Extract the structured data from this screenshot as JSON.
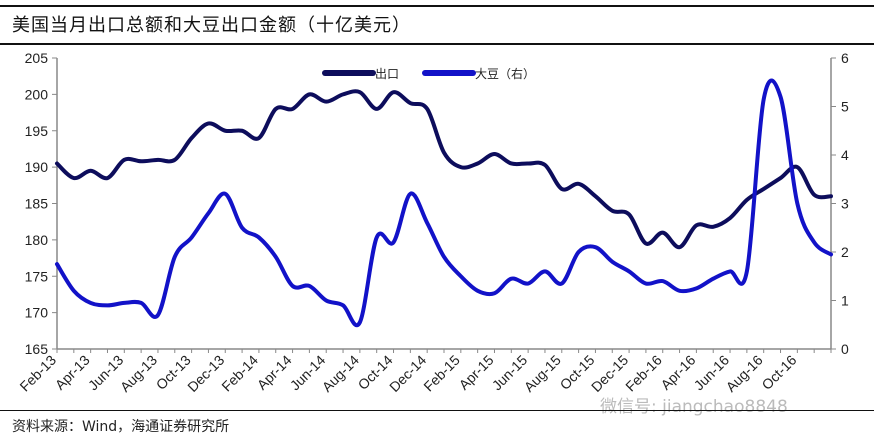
{
  "title": "美国当月出口总额和大豆出口金额（十亿美元）",
  "source": "资料来源：Wind，海通证券研究所",
  "watermark": "微信号: jiangchao8848",
  "chart_data": {
    "type": "line",
    "title": "美国当月出口总额和大豆出口金额（十亿美元）",
    "x_tick_labels": [
      "Feb-13",
      "Apr-13",
      "Jun-13",
      "Aug-13",
      "Oct-13",
      "Dec-13",
      "Feb-14",
      "Apr-14",
      "Jun-14",
      "Aug-14",
      "Oct-14",
      "Dec-14",
      "Feb-15",
      "Apr-15",
      "Jun-15",
      "Aug-15",
      "Oct-15",
      "Dec-15",
      "Feb-16",
      "Apr-16",
      "Jun-16",
      "Aug-16",
      "Oct-16"
    ],
    "x_range": [
      "Feb-13",
      "Dec-16"
    ],
    "y_left": {
      "range": [
        165,
        205
      ],
      "ticks": [
        165,
        170,
        175,
        180,
        185,
        190,
        195,
        200,
        205
      ]
    },
    "y_right": {
      "range": [
        0,
        6
      ],
      "ticks": [
        0,
        1,
        2,
        3,
        4,
        5,
        6
      ]
    },
    "legend_placement": "top-center",
    "series": [
      {
        "name": "出口",
        "axis": "left",
        "color": "#0d0d5c",
        "values": [
          190.5,
          188.5,
          189.5,
          188.5,
          191,
          190.8,
          191,
          191,
          194,
          196,
          195,
          195,
          194,
          198,
          198,
          200,
          199,
          200,
          200.3,
          198,
          200.3,
          198.8,
          198,
          192,
          190,
          190.5,
          191.8,
          190.5,
          190.5,
          190.3,
          187,
          187.7,
          186,
          184,
          183.5,
          179.5,
          181,
          179,
          182,
          181.8,
          183,
          185.5,
          187,
          188.5,
          190,
          186.2,
          186
        ]
      },
      {
        "name": "大豆（右）",
        "axis": "right",
        "color": "#1212c8",
        "values": [
          1.75,
          1.2,
          0.95,
          0.9,
          0.95,
          0.95,
          0.7,
          1.9,
          2.3,
          2.8,
          3.2,
          2.5,
          2.3,
          1.9,
          1.3,
          1.3,
          1.0,
          0.9,
          0.55,
          2.3,
          2.2,
          3.2,
          2.6,
          1.9,
          1.5,
          1.2,
          1.15,
          1.45,
          1.35,
          1.6,
          1.35,
          2.0,
          2.1,
          1.8,
          1.6,
          1.35,
          1.4,
          1.2,
          1.25,
          1.45,
          1.6,
          1.6,
          5.15,
          5.2,
          3.0,
          2.2,
          1.95
        ]
      }
    ]
  }
}
